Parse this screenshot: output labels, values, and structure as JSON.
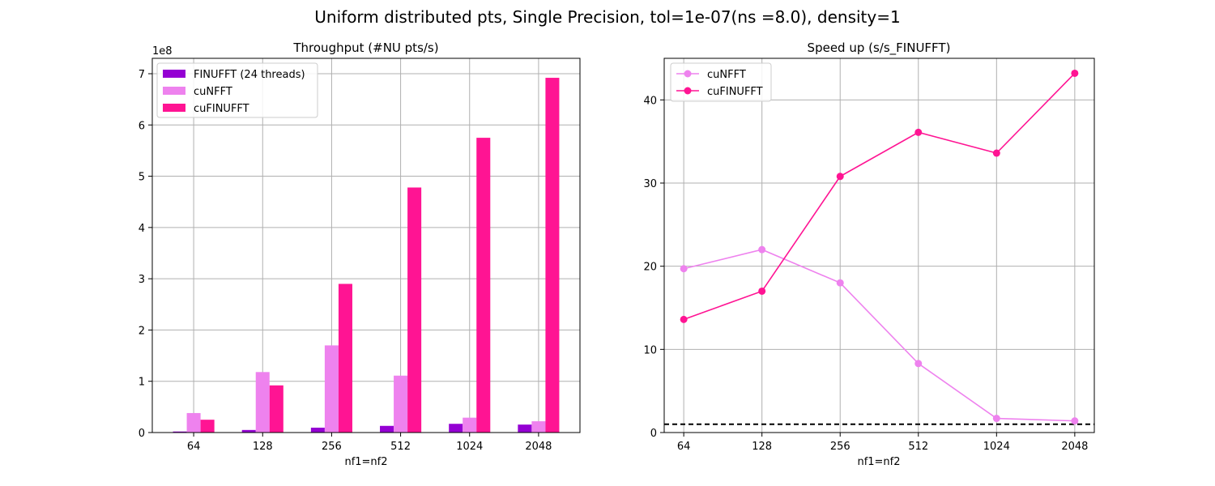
{
  "suptitle": "Uniform distributed pts, Single Precision, tol=1e-07(ns =8.0), density=1",
  "colors": {
    "finufft": "#9400d3",
    "cunfft": "#ee82ee",
    "cufinufft": "#ff1493",
    "grid": "#b0b0b0",
    "reference_line": "#000000"
  },
  "chart_data": [
    {
      "type": "bar",
      "title": "Throughput (#NU pts/s)",
      "xlabel": "nf1=nf2",
      "ylabel": "",
      "y_offset_label": "1e8",
      "categories": [
        "64",
        "128",
        "256",
        "512",
        "1024",
        "2048"
      ],
      "ylim": [
        0,
        730000000.0
      ],
      "yticks": [
        0,
        100000000.0,
        200000000.0,
        300000000.0,
        400000000.0,
        500000000.0,
        600000000.0,
        700000000.0
      ],
      "ytick_labels": [
        "0",
        "1",
        "2",
        "3",
        "4",
        "5",
        "6",
        "7"
      ],
      "grid": true,
      "legend_position": "top-left",
      "series": [
        {
          "name": "FINUFFT (24 threads)",
          "color": "#9400d3",
          "values": [
            2000000,
            5000000,
            9500000,
            13000000,
            17000000,
            15500000
          ]
        },
        {
          "name": "cuNFFT",
          "color": "#ee82ee",
          "values": [
            38000000,
            118000000,
            170000000,
            111000000,
            29000000,
            22000000
          ]
        },
        {
          "name": "cuFINUFFT",
          "color": "#ff1493",
          "values": [
            25000000,
            92000000,
            290000000,
            478000000,
            575000000,
            692000000
          ]
        }
      ]
    },
    {
      "type": "line",
      "title": "Speed up (s/s_FINUFFT)",
      "xlabel": "nf1=nf2",
      "ylabel": "",
      "categories": [
        "64",
        "128",
        "256",
        "512",
        "1024",
        "2048"
      ],
      "ylim": [
        0,
        45
      ],
      "yticks": [
        0,
        10,
        20,
        30,
        40
      ],
      "ytick_labels": [
        "0",
        "10",
        "20",
        "30",
        "40"
      ],
      "grid": true,
      "legend_position": "top-left",
      "reference_line_y": 1,
      "series": [
        {
          "name": "cuNFFT",
          "color": "#ee82ee",
          "values": [
            19.7,
            22.0,
            18.0,
            8.3,
            1.7,
            1.4
          ]
        },
        {
          "name": "cuFINUFFT",
          "color": "#ff1493",
          "values": [
            13.6,
            17.0,
            30.8,
            36.1,
            33.6,
            43.2
          ]
        }
      ]
    }
  ]
}
